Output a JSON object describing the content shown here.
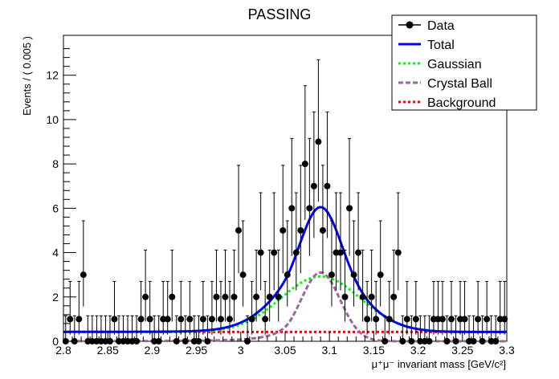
{
  "chart_data": {
    "type": "scatter",
    "title": "PASSING",
    "xlabel": "μ⁺μ⁻ invariant mass [GeV/c²]",
    "ylabel": "Events / ( 0.005 )",
    "xlim": [
      2.8,
      3.3
    ],
    "ylim": [
      0,
      13.8
    ],
    "x_ticks": [
      "2.8",
      "2.85",
      "2.9",
      "2.95",
      "3",
      "3.05",
      "3.1",
      "3.15",
      "3.2",
      "3.25",
      "3.3"
    ],
    "y_ticks": [
      "0",
      "2",
      "4",
      "6",
      "8",
      "10",
      "12"
    ],
    "grid": false,
    "legend_position": "top-right",
    "legend": [
      {
        "label": "Data",
        "color": "#000000",
        "style": "marker"
      },
      {
        "label": "Total",
        "color": "#0000ff",
        "style": "solid"
      },
      {
        "label": "Gaussian",
        "color": "#00ff00",
        "style": "dotted"
      },
      {
        "label": "Crystal Ball",
        "color": "#996699",
        "style": "dashed"
      },
      {
        "label": "Background",
        "color": "#ff0000",
        "style": "dotted"
      }
    ],
    "data_points": {
      "bin_width": 0.005,
      "x": [
        2.8025,
        2.8075,
        2.8125,
        2.8175,
        2.8225,
        2.8275,
        2.8325,
        2.8375,
        2.8425,
        2.8475,
        2.8525,
        2.8575,
        2.8625,
        2.8675,
        2.8725,
        2.8775,
        2.8825,
        2.8875,
        2.8925,
        2.8975,
        2.9025,
        2.9075,
        2.9125,
        2.9175,
        2.9225,
        2.9275,
        2.9325,
        2.9375,
        2.9425,
        2.9475,
        2.9525,
        2.9575,
        2.9625,
        2.9675,
        2.9725,
        2.9775,
        2.9825,
        2.9875,
        2.9925,
        2.9975,
        3.0025,
        3.0075,
        3.0125,
        3.0175,
        3.0225,
        3.0275,
        3.0325,
        3.0375,
        3.0425,
        3.0475,
        3.0525,
        3.0575,
        3.0625,
        3.0675,
        3.0725,
        3.0775,
        3.0825,
        3.0875,
        3.0925,
        3.0975,
        3.1025,
        3.1075,
        3.1125,
        3.1175,
        3.1225,
        3.1275,
        3.1325,
        3.1375,
        3.1425,
        3.1475,
        3.1525,
        3.1575,
        3.1625,
        3.1675,
        3.1725,
        3.1775,
        3.1825,
        3.1875,
        3.1925,
        3.1975,
        3.2025,
        3.2075,
        3.2125,
        3.2175,
        3.2225,
        3.2275,
        3.2325,
        3.2375,
        3.2425,
        3.2475,
        3.2525,
        3.2575,
        3.2625,
        3.2675,
        3.2725,
        3.2775,
        3.2825,
        3.2875,
        3.2925,
        3.2975
      ],
      "y": [
        0,
        1,
        0,
        1,
        3,
        0,
        0,
        0,
        0,
        0,
        0,
        1,
        0,
        0,
        0,
        0,
        0,
        1,
        2,
        1,
        0,
        0,
        1,
        1,
        2,
        0,
        1,
        0,
        1,
        0,
        0,
        1,
        0,
        1,
        2,
        1,
        2,
        1,
        2,
        5,
        3,
        0,
        1,
        2,
        4,
        1,
        2,
        4,
        2,
        5,
        3,
        6,
        4,
        5,
        8,
        6,
        7,
        9,
        5,
        7,
        3,
        4,
        4,
        2,
        6,
        3,
        4,
        2,
        1,
        2,
        1,
        3,
        0,
        1,
        2,
        4,
        0,
        1,
        0,
        1,
        0,
        0,
        0,
        1,
        1,
        1,
        0,
        1,
        0,
        1,
        1,
        0,
        0,
        1,
        0,
        1,
        0,
        0,
        1,
        1
      ]
    },
    "curves": {
      "total_peak": 6.05,
      "gaussian_peak": 2.5,
      "crystal_ball_peak": 3.1,
      "background_level": 0.42,
      "mean": 3.09
    }
  }
}
